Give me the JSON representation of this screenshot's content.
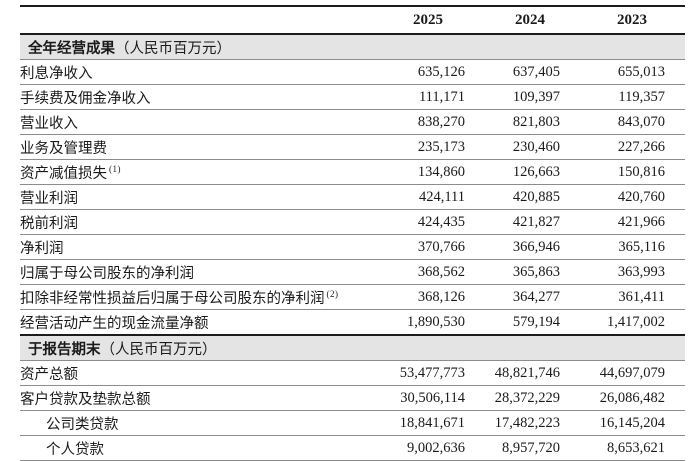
{
  "table": {
    "columns": [
      "2025",
      "2024",
      "2023"
    ],
    "sections": [
      {
        "title": "全年经营成果",
        "unit": "（人民币百万元）",
        "rows": [
          {
            "label": "利息净收入",
            "note": "",
            "indent": false,
            "values": [
              "635,126",
              "637,405",
              "655,013"
            ]
          },
          {
            "label": "手续费及佣金净收入",
            "note": "",
            "indent": false,
            "values": [
              "111,171",
              "109,397",
              "119,357"
            ]
          },
          {
            "label": "营业收入",
            "note": "",
            "indent": false,
            "values": [
              "838,270",
              "821,803",
              "843,070"
            ]
          },
          {
            "label": "业务及管理费",
            "note": "",
            "indent": false,
            "values": [
              "235,173",
              "230,460",
              "227,266"
            ]
          },
          {
            "label": "资产减值损失",
            "note": "(1)",
            "indent": false,
            "values": [
              "134,860",
              "126,663",
              "150,816"
            ]
          },
          {
            "label": "营业利润",
            "note": "",
            "indent": false,
            "values": [
              "424,111",
              "420,885",
              "420,760"
            ]
          },
          {
            "label": "税前利润",
            "note": "",
            "indent": false,
            "values": [
              "424,435",
              "421,827",
              "421,966"
            ]
          },
          {
            "label": "净利润",
            "note": "",
            "indent": false,
            "values": [
              "370,766",
              "366,946",
              "365,116"
            ]
          },
          {
            "label": "归属于母公司股东的净利润",
            "note": "",
            "indent": false,
            "values": [
              "368,562",
              "365,863",
              "363,993"
            ]
          },
          {
            "label": "扣除非经常性损益后归属于母公司股东的净利润",
            "note": "(2)",
            "indent": false,
            "values": [
              "368,126",
              "364,277",
              "361,411"
            ]
          },
          {
            "label": "经营活动产生的现金流量净额",
            "note": "",
            "indent": false,
            "values": [
              "1,890,530",
              "579,194",
              "1,417,002"
            ]
          }
        ]
      },
      {
        "title": "于报告期末",
        "unit": "（人民币百万元）",
        "rows": [
          {
            "label": "资产总额",
            "note": "",
            "indent": false,
            "values": [
              "53,477,773",
              "48,821,746",
              "44,697,079"
            ]
          },
          {
            "label": "客户贷款及垫款总额",
            "note": "",
            "indent": false,
            "values": [
              "30,506,114",
              "28,372,229",
              "26,086,482"
            ]
          },
          {
            "label": "公司类贷款",
            "note": "",
            "indent": true,
            "values": [
              "18,841,671",
              "17,482,223",
              "16,145,204"
            ]
          },
          {
            "label": "个人贷款",
            "note": "",
            "indent": true,
            "values": [
              "9,002,636",
              "8,957,720",
              "8,653,621"
            ]
          }
        ]
      }
    ]
  },
  "colors": {
    "band": "#e4e4e4",
    "rule_thin": "#8c8c8c",
    "rule_thick": "#1c1c1c"
  }
}
